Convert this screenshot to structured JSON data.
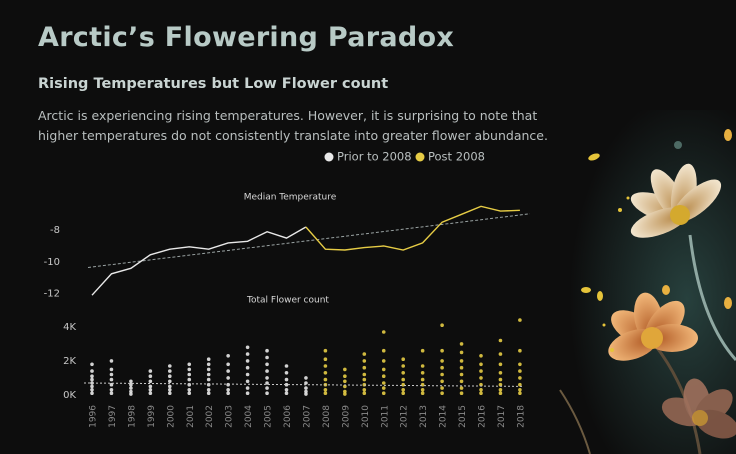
{
  "header": {
    "title": "Arctic’s Flowering Paradox",
    "subtitle": "Rising Temperatures but Low Flower count",
    "description": "Arctic is experiencing rising temperatures. However, it is surprising to note that higher temperatures do not consistently translate into greater flower abundance."
  },
  "chart_data": [
    {
      "type": "line",
      "title": "Median Temperature",
      "x": [
        1996,
        1997,
        1998,
        1999,
        2000,
        2001,
        2002,
        2003,
        2004,
        2005,
        2006,
        2007,
        2008,
        2009,
        2010,
        2011,
        2012,
        2013,
        2014,
        2015,
        2016,
        2017,
        2018
      ],
      "series": [
        {
          "name": "Prior to 2008",
          "color": "#e8e8e8",
          "values": [
            -12.1,
            -10.75,
            -10.4,
            -9.55,
            -9.2,
            -9.05,
            -9.2,
            -8.8,
            -8.7,
            -8.1,
            -8.5,
            -7.8,
            null,
            null,
            null,
            null,
            null,
            null,
            null,
            null,
            null,
            null,
            null
          ]
        },
        {
          "name": "Post 2008",
          "color": "#e6cc45",
          "values": [
            null,
            null,
            null,
            null,
            null,
            null,
            null,
            null,
            null,
            null,
            null,
            -7.8,
            -9.2,
            -9.25,
            -9.1,
            -9.0,
            -9.25,
            -8.8,
            -7.5,
            -7.0,
            -6.5,
            -6.8,
            -6.75
          ]
        }
      ],
      "trend": [
        -10.35,
        -7.0
      ],
      "ylim": [
        -12.4,
        -6.1
      ],
      "yticks": [
        -8,
        -10,
        -12
      ]
    },
    {
      "type": "strip",
      "title": "Total Flower count",
      "categories": [
        "1996",
        "1997",
        "1998",
        "1999",
        "2000",
        "2001",
        "2002",
        "2003",
        "2004",
        "2005",
        "2006",
        "2007",
        "2008",
        "2009",
        "2010",
        "2011",
        "2012",
        "2013",
        "2014",
        "2015",
        "2016",
        "2017",
        "2018"
      ],
      "series": [
        {
          "color": "#e8e8e8",
          "values": [
            [
              100,
              300,
              500,
              700,
              900,
              1100,
              1400,
              1800
            ],
            [
              100,
              300,
              600,
              900,
              1200,
              1500,
              2000
            ],
            [
              50,
              200,
              400,
              600,
              800
            ],
            [
              100,
              300,
              500,
              800,
              1100,
              1400
            ],
            [
              100,
              300,
              500,
              800,
              1100,
              1400,
              1700
            ],
            [
              100,
              300,
              600,
              900,
              1200,
              1500,
              1800
            ],
            [
              100,
              300,
              600,
              900,
              1200,
              1500,
              1800,
              2100
            ],
            [
              100,
              300,
              600,
              1000,
              1400,
              1800,
              2300
            ],
            [
              100,
              400,
              800,
              1200,
              1600,
              2000,
              2400,
              2800
            ],
            [
              100,
              400,
              700,
              1000,
              1400,
              1800,
              2200,
              2600
            ],
            [
              100,
              300,
              600,
              900,
              1300,
              1700
            ],
            [
              50,
              200,
              400,
              700,
              1000
            ],
            null,
            null,
            null,
            null,
            null,
            null,
            null,
            null,
            null,
            null,
            null
          ]
        },
        {
          "color": "#e6cc45",
          "values": [
            null,
            null,
            null,
            null,
            null,
            null,
            null,
            null,
            null,
            null,
            null,
            null,
            [
              100,
              300,
              600,
              900,
              1300,
              1700,
              2100,
              2600
            ],
            [
              50,
              200,
              500,
              800,
              1100,
              1500
            ],
            [
              100,
              300,
              600,
              900,
              1200,
              1600,
              2000,
              2400
            ],
            [
              100,
              400,
              700,
              1100,
              1500,
              2000,
              2600,
              3700
            ],
            [
              100,
              300,
              600,
              900,
              1300,
              1700,
              2100
            ],
            [
              100,
              300,
              600,
              900,
              1300,
              1700,
              2600
            ],
            [
              100,
              400,
              800,
              1200,
              1600,
              2000,
              2600,
              4100
            ],
            [
              100,
              400,
              800,
              1200,
              1600,
              2000,
              2500,
              3000
            ],
            [
              100,
              300,
              600,
              1000,
              1400,
              1800,
              2300
            ],
            [
              100,
              300,
              600,
              900,
              1300,
              1800,
              2400,
              3200
            ],
            [
              100,
              300,
              600,
              1000,
              1400,
              1800,
              2600,
              4400
            ]
          ]
        }
      ],
      "trend": [
        700,
        500
      ],
      "ylim": [
        -300,
        4700
      ],
      "yticks": [
        {
          "value": 4000,
          "label": "4K"
        },
        {
          "value": 2000,
          "label": "2K"
        },
        {
          "value": 0,
          "label": "0K"
        }
      ]
    }
  ]
}
